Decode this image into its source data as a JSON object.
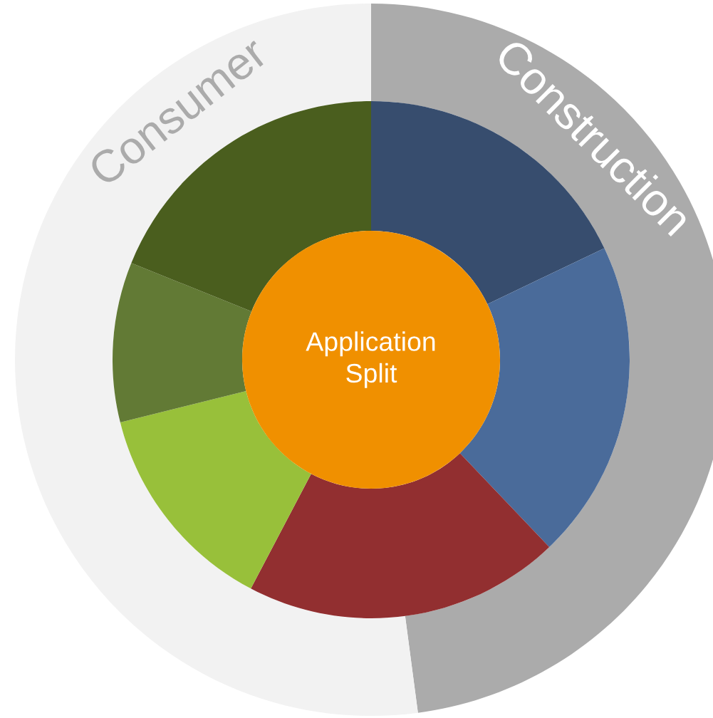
{
  "chart_data": {
    "type": "donut",
    "title": "Application Split",
    "categories": [
      "Construction",
      "Consumer",
      null,
      null,
      null,
      null,
      null,
      null
    ],
    "series": [
      {
        "values": [
          47.9,
          52.1,
          null,
          null,
          null,
          null,
          null,
          null
        ],
        "colors": [
          "#ababab",
          "#f2f2f2",
          null,
          null,
          null,
          null,
          null,
          null
        ]
      },
      {
        "values": [
          null,
          null,
          17.9,
          20.0,
          19.8,
          13.4,
          10.0,
          18.9
        ],
        "colors": [
          null,
          null,
          "#374d6e",
          "#4a6b9a",
          "#922f30",
          "#98c03a",
          "#627a35",
          "#4a5e1e"
        ]
      }
    ]
  }
}
